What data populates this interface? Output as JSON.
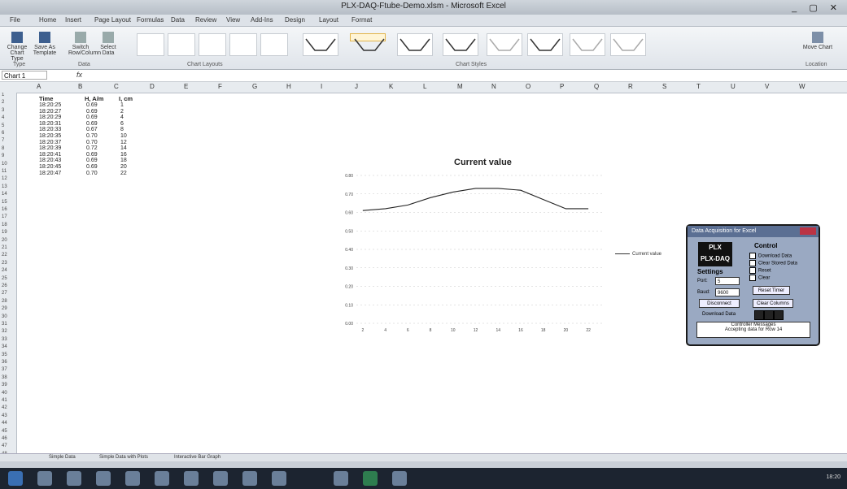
{
  "window": {
    "title": "PLX-DAQ-Ftube-Demo.xlsm - Microsoft Excel",
    "controls": "_ ▢ ✕"
  },
  "ribbon_tabs": [
    "File",
    "Home",
    "Insert",
    "Page Layout",
    "Formulas",
    "Data",
    "Review",
    "View",
    "Add-Ins",
    "Design",
    "Layout",
    "Format"
  ],
  "ribbon": {
    "groups": [
      "Type",
      "Data",
      "Chart Layouts",
      "Chart Styles",
      "Location"
    ],
    "buttons": {
      "change_type": "Change Chart Type",
      "save_template": "Save As Template",
      "switch_row": "Switch Row/Column",
      "select_data": "Select Data",
      "move_chart": "Move Chart"
    }
  },
  "formula_bar": {
    "name_box": "Chart 1",
    "fx": "fx"
  },
  "columns": [
    "A",
    "B",
    "C",
    "D",
    "E",
    "F",
    "G",
    "H",
    "I",
    "J",
    "K",
    "L",
    "M",
    "N",
    "O",
    "P",
    "Q",
    "R",
    "S",
    "T",
    "U",
    "V",
    "W"
  ],
  "table": {
    "headers": [
      "Time",
      "H, A/m",
      "I, cm"
    ],
    "rows": [
      [
        "18:20:25",
        "0.69",
        "1"
      ],
      [
        "18:20:27",
        "0.69",
        "2"
      ],
      [
        "18:20:29",
        "0.69",
        "4"
      ],
      [
        "18:20:31",
        "0.69",
        "6"
      ],
      [
        "18:20:33",
        "0.67",
        "8"
      ],
      [
        "18:20:35",
        "0.70",
        "10"
      ],
      [
        "18:20:37",
        "0.70",
        "12"
      ],
      [
        "18:20:39",
        "0.72",
        "14"
      ],
      [
        "18:20:41",
        "0.69",
        "16"
      ],
      [
        "18:20:43",
        "0.69",
        "18"
      ],
      [
        "18:20:45",
        "0.69",
        "20"
      ],
      [
        "18:20:47",
        "0.70",
        "22"
      ]
    ]
  },
  "chart_data": {
    "type": "line",
    "title": "Current value",
    "x": [
      2,
      4,
      6,
      8,
      10,
      12,
      14,
      16,
      18,
      20,
      22
    ],
    "series": [
      {
        "name": "Current value",
        "values": [
          0.61,
          0.62,
          0.64,
          0.68,
          0.71,
          0.73,
          0.73,
          0.72,
          0.67,
          0.62,
          0.62
        ]
      }
    ],
    "y_ticks": [
      "0.80",
      "0.70",
      "0.60",
      "0.50",
      "0.40",
      "0.30",
      "0.20",
      "0.10",
      "0.00"
    ],
    "ylim": [
      0.0,
      0.8
    ],
    "legend_position": "right",
    "grid": true
  },
  "dialog": {
    "title": "Data Acquisition for Excel",
    "logo_top": "PLX",
    "logo_bottom": "PLX-DAQ",
    "settings_label": "Settings",
    "port_label": "Port:",
    "port_value": "5",
    "baud_label": "Baud:",
    "baud_value": "9600",
    "control_label": "Control",
    "checks": [
      "Download Data",
      "Clear Stored Data",
      "Reset",
      "Clear"
    ],
    "connect_button": "Disconnect",
    "reset_timer_button": "Reset Timer",
    "clear_columns_button": "Clear Columns",
    "user1_label": "Download Data",
    "message_title": "Controller Messages",
    "message": "Accepting data for Row 14"
  },
  "sheet_tabs": [
    "Simple Data",
    "Simple Data with Plots",
    "Interactive Bar Graph"
  ],
  "clock": "18:20"
}
